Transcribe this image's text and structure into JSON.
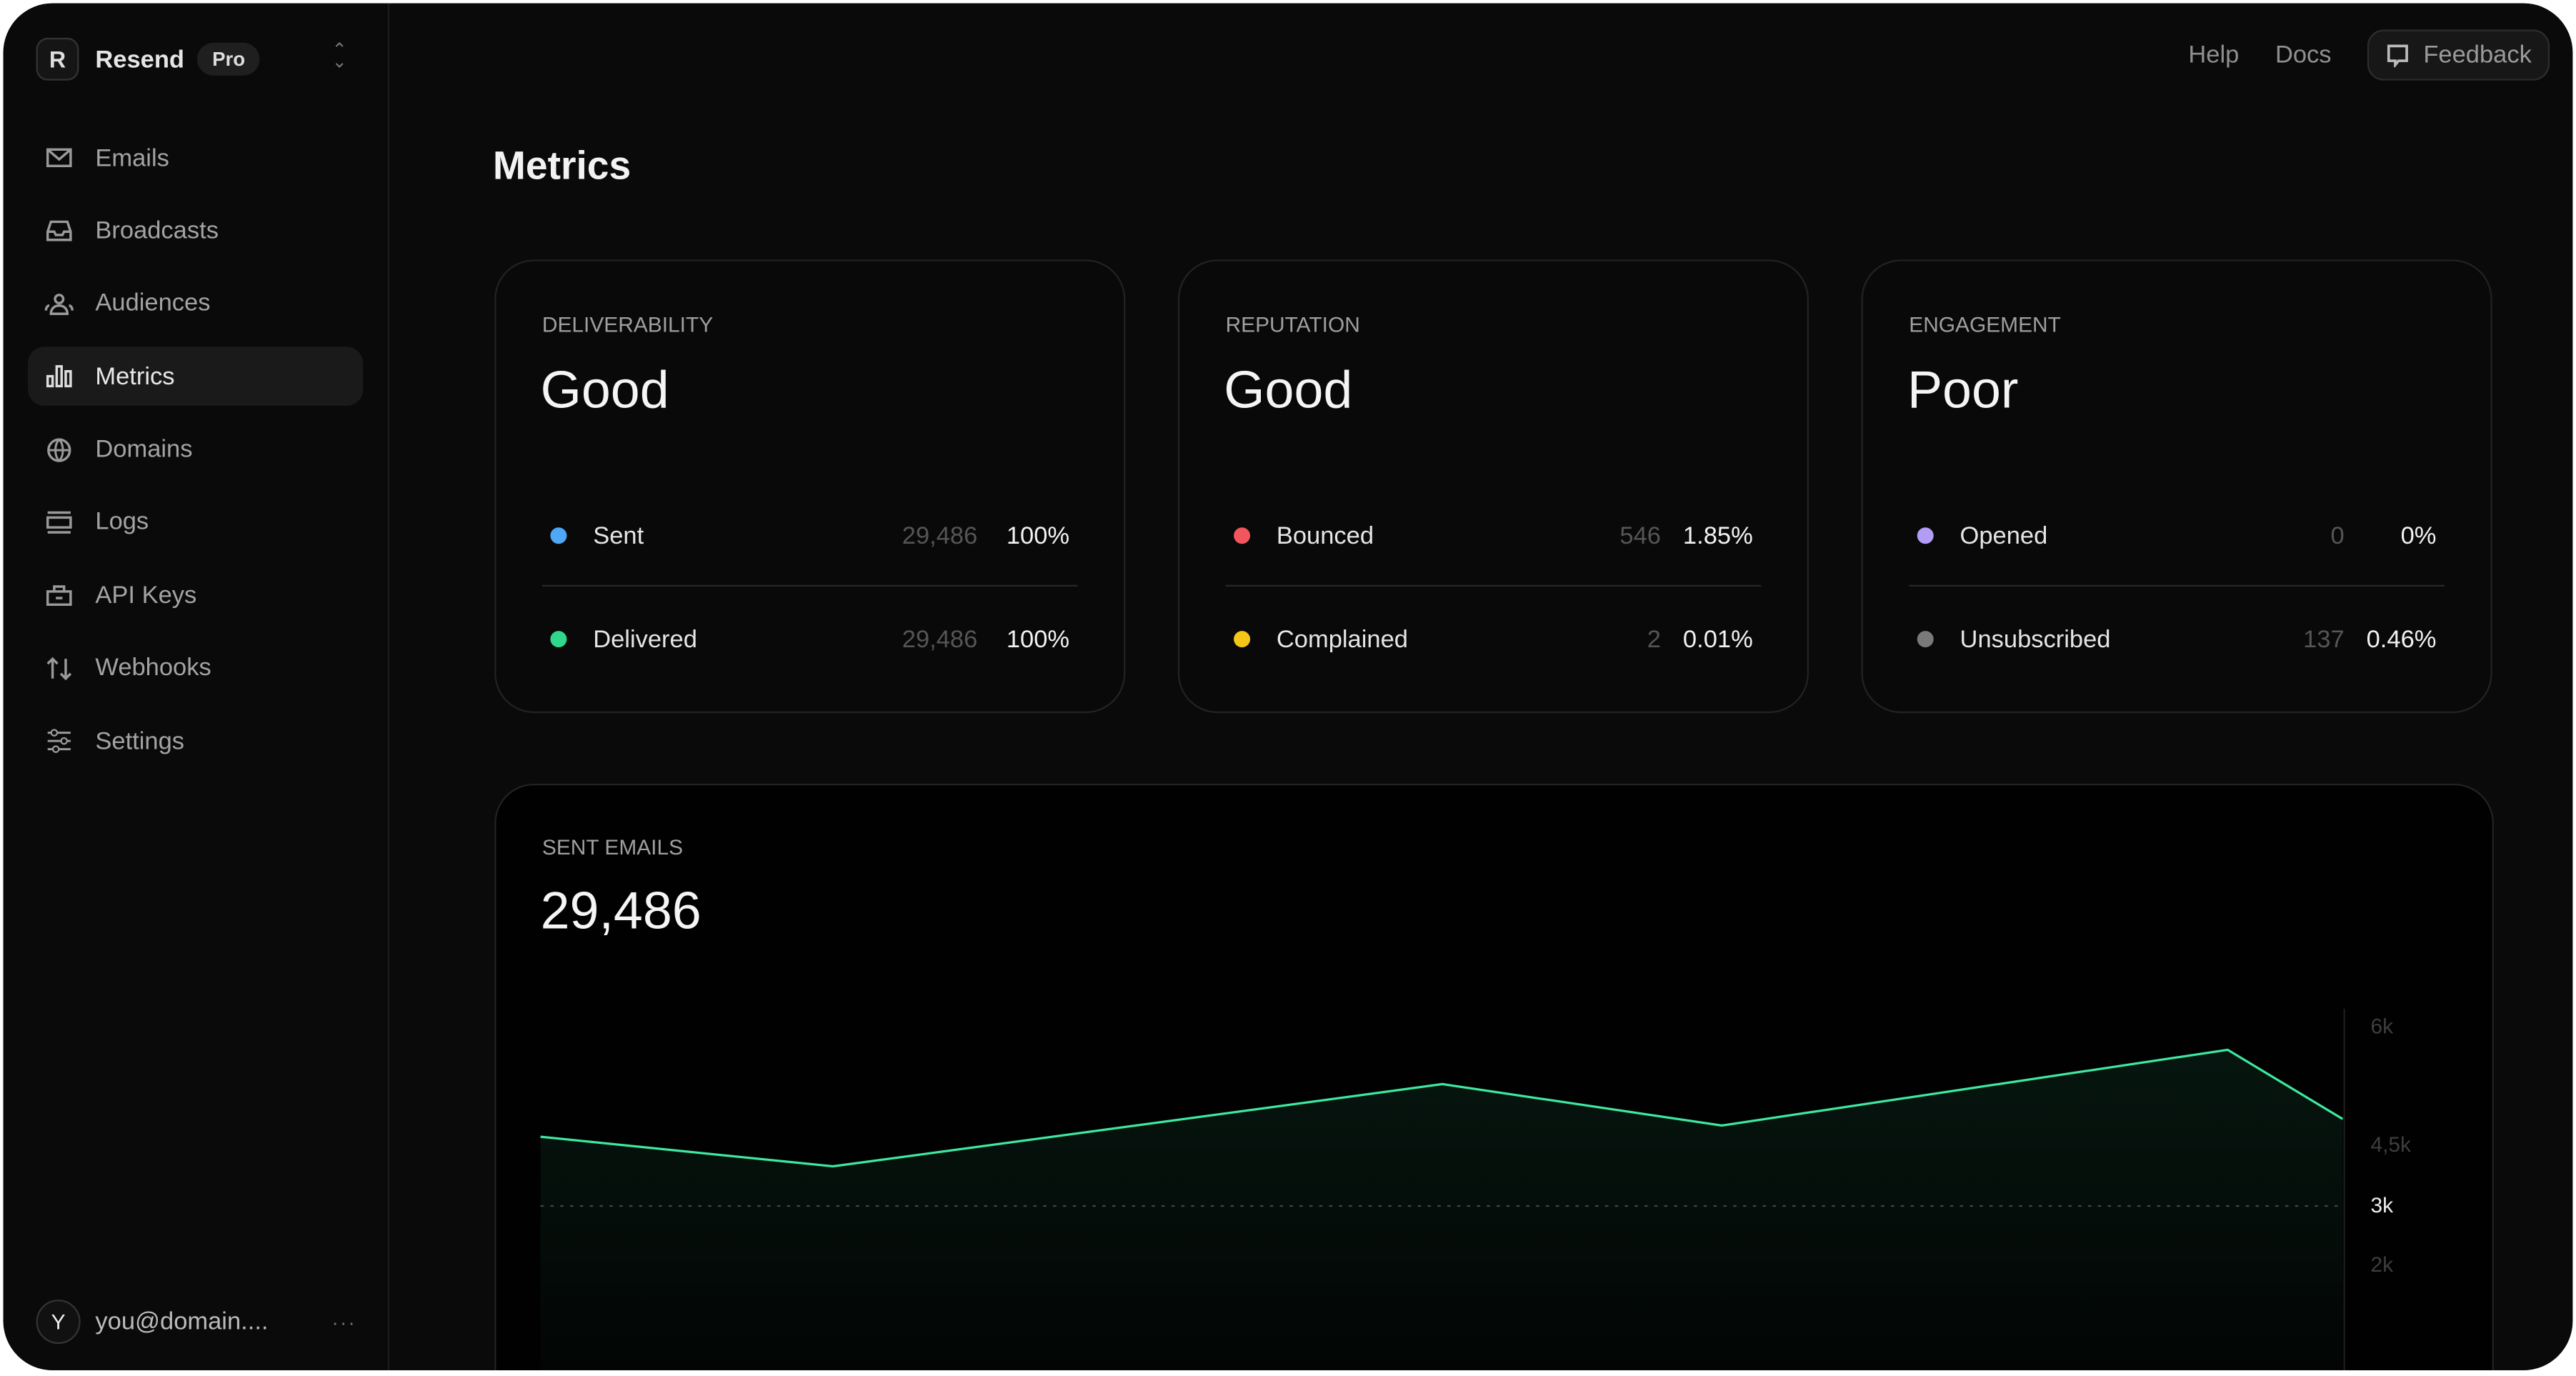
{
  "sidebar": {
    "brand": "Resend",
    "logo_letter": "R",
    "plan": "Pro",
    "items": [
      {
        "label": "Emails",
        "icon": "mail-icon"
      },
      {
        "label": "Broadcasts",
        "icon": "inbox-icon"
      },
      {
        "label": "Audiences",
        "icon": "users-icon"
      },
      {
        "label": "Metrics",
        "icon": "bar-chart-icon",
        "active": true
      },
      {
        "label": "Domains",
        "icon": "globe-icon"
      },
      {
        "label": "Logs",
        "icon": "list-icon"
      },
      {
        "label": "API Keys",
        "icon": "lock-icon"
      },
      {
        "label": "Webhooks",
        "icon": "arrows-up-down-icon"
      },
      {
        "label": "Settings",
        "icon": "sliders-icon"
      }
    ],
    "user": {
      "initial": "Y",
      "email": "you@domain....",
      "more": "···"
    }
  },
  "topbar": {
    "help": "Help",
    "docs": "Docs",
    "feedback": "Feedback"
  },
  "page": {
    "title": "Metrics"
  },
  "cards": [
    {
      "label": "DELIVERABILITY",
      "status": "Good",
      "rows": [
        {
          "label": "Sent",
          "count": "29,486",
          "pct": "100%",
          "color": "#4ea8f5"
        },
        {
          "label": "Delivered",
          "count": "29,486",
          "pct": "100%",
          "color": "#2fd88d"
        }
      ]
    },
    {
      "label": "REPUTATION",
      "status": "Good",
      "rows": [
        {
          "label": "Bounced",
          "count": "546",
          "pct": "1.85%",
          "color": "#f0565c"
        },
        {
          "label": "Complained",
          "count": "2",
          "pct": "0.01%",
          "color": "#f5c517"
        }
      ]
    },
    {
      "label": "ENGAGEMENT",
      "status": "Poor",
      "rows": [
        {
          "label": "Opened",
          "count": "0",
          "pct": "0%",
          "color": "#b39cf5"
        },
        {
          "label": "Unsubscribed",
          "count": "137",
          "pct": "0.46%",
          "color": "#7a7a7a"
        }
      ]
    }
  ],
  "sent_emails": {
    "label": "SENT EMAILS",
    "total": "29,486"
  },
  "chart_data": {
    "type": "area",
    "values": [
      4170,
      3670,
      5060,
      4360,
      5640,
      4470
    ],
    "y_ticks": [
      "6k",
      "4,5k",
      "3k",
      "2k"
    ],
    "highlighted_tick": "3k",
    "reference_line": 3000,
    "line_color": "#3ee8a0",
    "grid": false
  }
}
